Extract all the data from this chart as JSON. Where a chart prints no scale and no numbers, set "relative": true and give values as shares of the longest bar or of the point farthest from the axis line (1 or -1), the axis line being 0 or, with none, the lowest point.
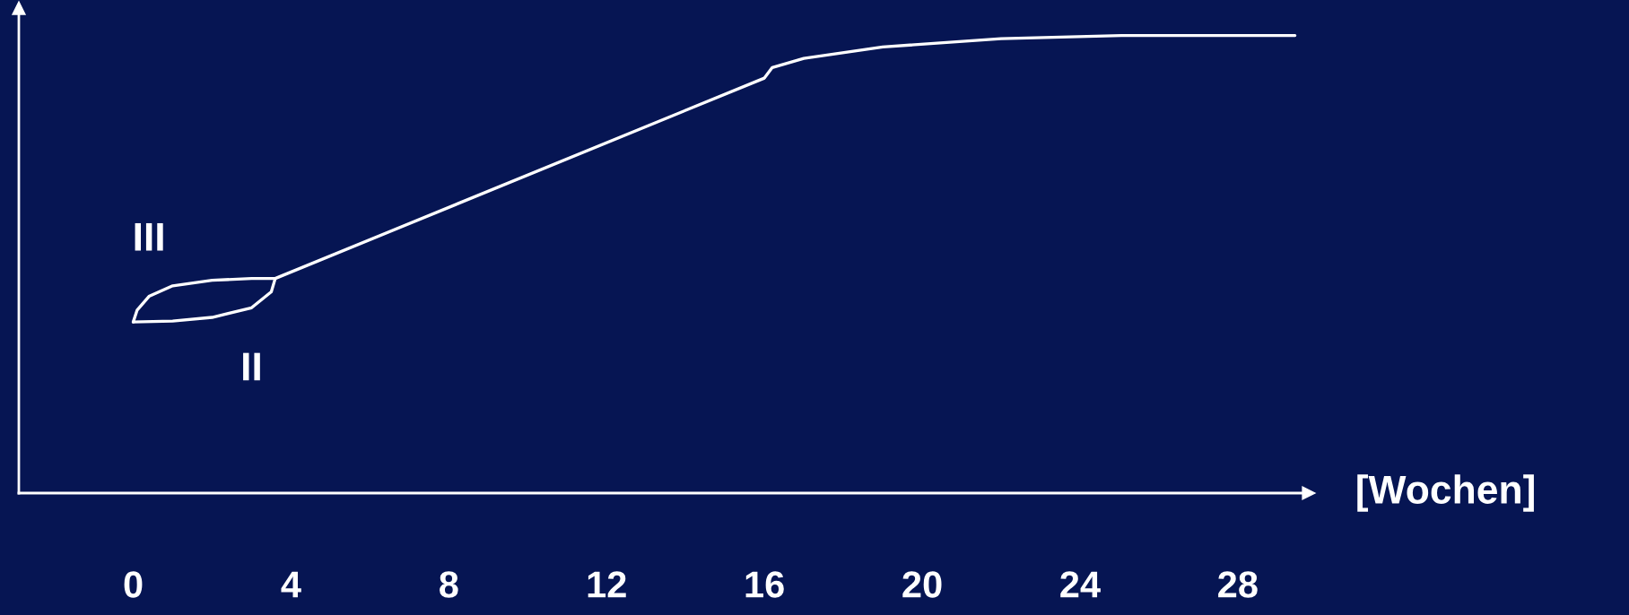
{
  "chart_data": {
    "type": "line",
    "relative": true,
    "xlabel": "[Wochen]",
    "xlim": [
      -2.9,
      29.8
    ],
    "xticks": [
      0,
      4,
      8,
      12,
      16,
      20,
      24,
      28
    ],
    "tick_labels": "x",
    "grid": false,
    "legend": false,
    "marker": "none",
    "line_style": "solid",
    "series": [
      {
        "name": "III",
        "color": "#ffffff",
        "x": [
          0,
          0.1,
          0.4,
          1,
          2,
          3,
          3.6,
          16.0,
          16.2,
          17,
          19,
          22,
          25.05,
          29.45
        ],
        "values": [
          0.374,
          0.4,
          0.43,
          0.453,
          0.465,
          0.469,
          0.469,
          0.907,
          0.93,
          0.95,
          0.975,
          0.993,
          1.0,
          1.0
        ]
      },
      {
        "name": "II",
        "color": "#ffffff",
        "x": [
          0,
          1,
          2,
          3,
          3.5,
          3.6
        ],
        "values": [
          0.374,
          0.376,
          0.384,
          0.405,
          0.44,
          0.469
        ]
      }
    ]
  }
}
